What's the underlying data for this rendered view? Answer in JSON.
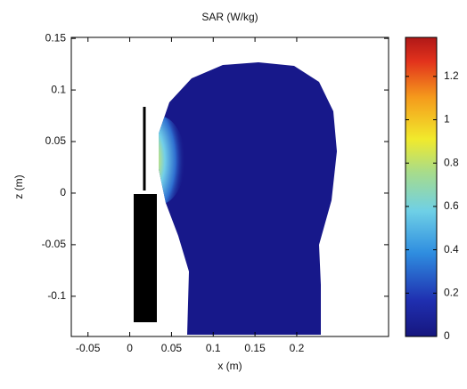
{
  "chart_data": {
    "type": "image",
    "title": "SAR (W/kg)",
    "xlabel": "x (m)",
    "ylabel": "z (m)",
    "xlim": [
      -0.07,
      0.31
    ],
    "xticks": [
      -0.05,
      0,
      0.05,
      0.1,
      0.15,
      0.2
    ],
    "ylim": [
      -0.139,
      0.151
    ],
    "yticks": [
      -0.1,
      -0.05,
      0,
      0.05,
      0.1,
      0.15
    ],
    "colorbar": {
      "clim": [
        0,
        1.38
      ],
      "ticks": [
        0,
        0.2,
        0.4,
        0.6,
        0.8,
        1,
        1.2
      ]
    }
  }
}
